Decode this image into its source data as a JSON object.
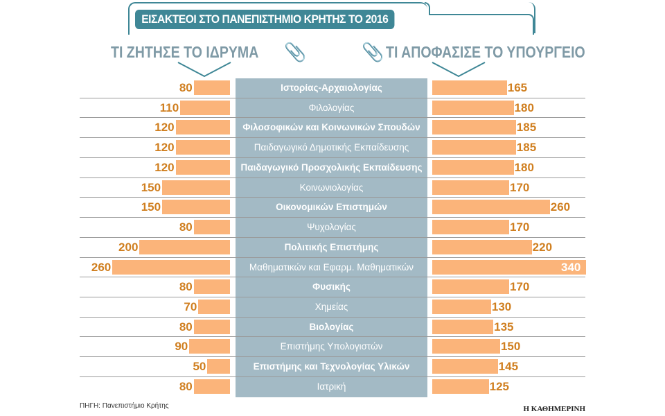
{
  "title": "ΕΙΣΑΚΤΕΟΙ ΣΤΟ ΠΑΝΕΠΙΣΤΗΜΙΟ ΚΡΗΤΗΣ ΤΟ 2016",
  "source": "ΠΗΓΗ: Πανεπιστήμιο Κρήτης",
  "brand": "Η ΚΑΘΗΜΕΡΙΝΗ",
  "colors": {
    "bar": "#fbb47a",
    "value": "#d07f20",
    "label_box": "#a3bac5",
    "title_bg": "#3f8796"
  },
  "chart_data": {
    "type": "bar",
    "orientation": "horizontal-butterfly",
    "title": "ΕΙΣΑΚΤΕΟΙ ΣΤΟ ΠΑΝΕΠΙΣΤΗΜΙΟ ΚΡΗΤΗΣ ΤΟ 2016",
    "categories": [
      "Ιστορίας-Αρχαιολογίας",
      "Φιλολογίας",
      "Φιλοσοφικών και Κοινωνικών Σπουδών",
      "Παιδαγωγικό Δημοτικής Εκπαίδευσης",
      "Παιδαγωγικό Προσχολικής Εκπαίδευσης",
      "Κοινωνιολογίας",
      "Οικονομικών Επιστημών",
      "Ψυχολογίας",
      "Πολιτικής Επιστήμης",
      "Μαθηματικών και Εφαρμ. Μαθηματικών",
      "Φυσικής",
      "Χημείας",
      "Βιολογίας",
      "Επιστήμης Υπολογιστών",
      "Επιστήμης και Τεχνολογίας Υλικών",
      "Ιατρική"
    ],
    "series": [
      {
        "name": "ΤΙ ΖΗΤΗΣΕ ΤΟ ΙΔΡΥΜΑ",
        "side": "left",
        "values": [
          80,
          110,
          120,
          120,
          120,
          150,
          150,
          80,
          200,
          260,
          80,
          70,
          80,
          90,
          50,
          80
        ]
      },
      {
        "name": "ΤΙ ΑΠΟΦΑΣΙΣΕ ΤΟ ΥΠΟΥΡΓΕΙΟ",
        "side": "right",
        "values": [
          165,
          180,
          185,
          185,
          180,
          170,
          260,
          170,
          220,
          340,
          170,
          130,
          135,
          150,
          145,
          125
        ]
      }
    ],
    "bold_categories": [
      true,
      false,
      true,
      false,
      true,
      false,
      true,
      false,
      true,
      false,
      true,
      false,
      true,
      false,
      true,
      false
    ]
  }
}
